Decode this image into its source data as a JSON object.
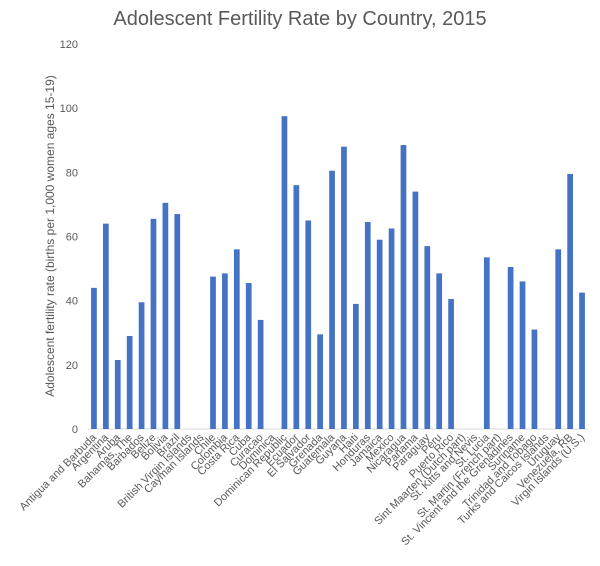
{
  "chart_data": {
    "type": "bar",
    "title": "Adolescent Fertility Rate by Country, 2015",
    "xlabel": "",
    "ylabel": "Adolescent fertility rate (births per 1,000 women ages 15-19)",
    "ylim": [
      0,
      120
    ],
    "yticks": [
      0,
      20,
      40,
      60,
      80,
      100,
      120
    ],
    "grid": false,
    "legend": "none",
    "bar_color": "#4472C4",
    "categories": [
      "Antigua and Barbuda",
      "Argentina",
      "Aruba",
      "Bahamas, The",
      "Barbados",
      "Belize",
      "Bolivia",
      "Brazil",
      "British Virgin Islands",
      "Cayman Islands",
      "Chile",
      "Colombia",
      "Costa Rica",
      "Cuba",
      "Curacao",
      "Dominica",
      "Dominican Republic",
      "Ecuador",
      "El Salvador",
      "Grenada",
      "Guatemala",
      "Guyana",
      "Haiti",
      "Honduras",
      "Jamaica",
      "Mexico",
      "Nicaragua",
      "Panama",
      "Paraguay",
      "Peru",
      "Puerto Rico",
      "Sint Maarten (Dutch part)",
      "St. Kitts and Nevis",
      "St. Lucia",
      "St. Martin (French part)",
      "St. Vincent and the Grenadines",
      "Suriname",
      "Trinidad and Tobago",
      "Turks and Caicos Islands",
      "Uruguay",
      "Venezuela, RB",
      "Virgin Islands (U.S.)"
    ],
    "values": [
      44,
      64,
      21.5,
      29,
      39.5,
      65.5,
      70.5,
      67,
      null,
      null,
      47.5,
      48.5,
      56,
      45.5,
      34,
      null,
      97.5,
      76,
      65,
      29.5,
      80.5,
      88,
      39,
      64.5,
      59,
      62.5,
      88.5,
      74,
      57,
      48.5,
      40.5,
      null,
      null,
      53.5,
      null,
      50.5,
      46,
      31,
      null,
      56,
      79.5,
      42.5
    ]
  }
}
